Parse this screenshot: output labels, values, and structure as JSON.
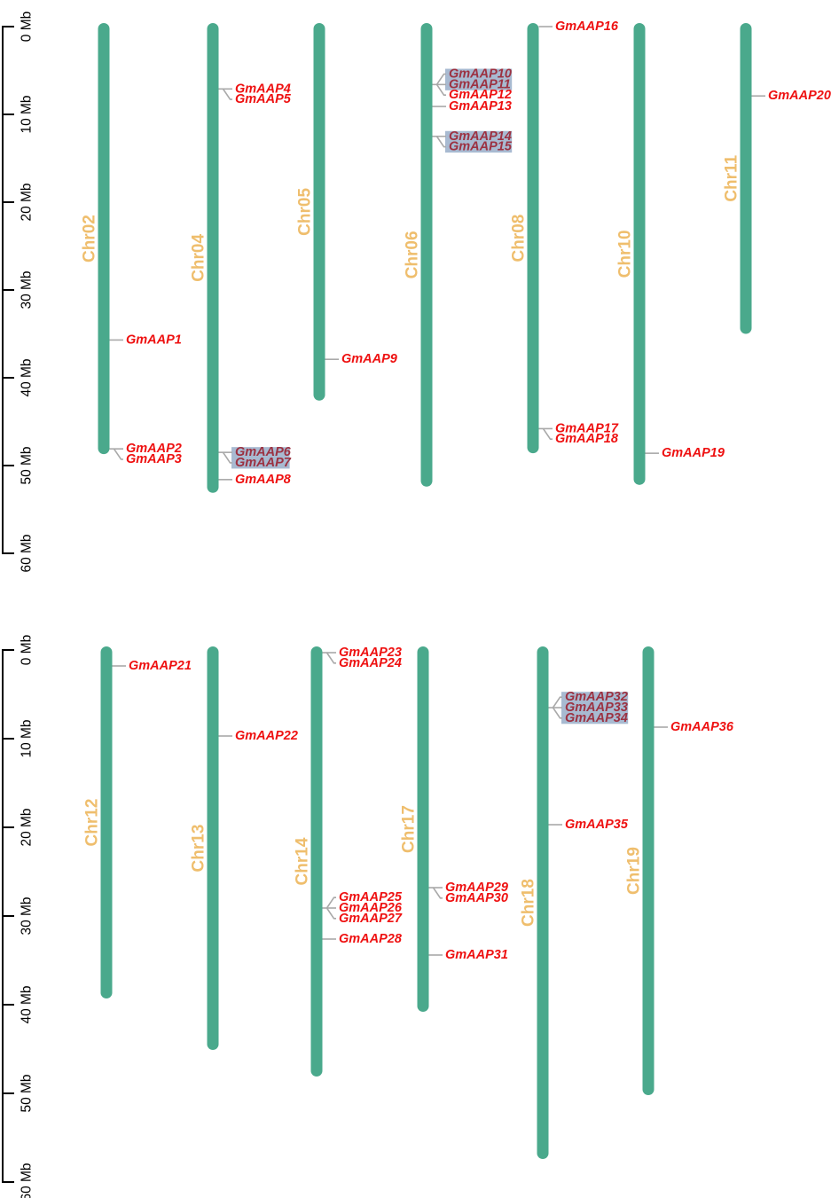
{
  "figure": {
    "type": "chromosome-map",
    "unit": "Mb",
    "colors": {
      "chromosome_bar": "#4AA98C",
      "chromosome_label": "#EFBE6D",
      "gene_label": "#EE1111",
      "gene_label_highlight": "#9C3242",
      "highlight_box": "#A8BAD1",
      "connector": "#A9A9A9",
      "axis": "#000000",
      "background": "#FFFFFF"
    },
    "panels": [
      {
        "ticks": [
          "0 Mb",
          "10 Mb",
          "20 Mb",
          "30 Mb",
          "40 Mb",
          "50 Mb",
          "60 Mb"
        ],
        "chromosomes": [
          {
            "name": "Chr02",
            "length_mb": 48.3,
            "gene_groups": [
              {
                "attach_mb": 35.7,
                "genes": [
                  {
                    "name": "GmAAP1",
                    "highlight": false
                  }
                ]
              },
              {
                "attach_mb": 48.1,
                "genes": [
                  {
                    "name": "GmAAP2",
                    "highlight": false
                  },
                  {
                    "name": "GmAAP3",
                    "highlight": false
                  }
                ]
              }
            ]
          },
          {
            "name": "Chr04",
            "length_mb": 52.7,
            "gene_groups": [
              {
                "attach_mb": 7.1,
                "genes": [
                  {
                    "name": "GmAAP4",
                    "highlight": false
                  },
                  {
                    "name": "GmAAP5",
                    "highlight": false
                  }
                ]
              },
              {
                "attach_mb": 48.5,
                "genes": [
                  {
                    "name": "GmAAP6",
                    "highlight": true
                  },
                  {
                    "name": "GmAAP7",
                    "highlight": true
                  }
                ]
              },
              {
                "attach_mb": 51.6,
                "genes": [
                  {
                    "name": "GmAAP8",
                    "highlight": false
                  }
                ]
              }
            ]
          },
          {
            "name": "Chr05",
            "length_mb": 42.2,
            "gene_groups": [
              {
                "attach_mb": 37.9,
                "genes": [
                  {
                    "name": "GmAAP9",
                    "highlight": false
                  }
                ]
              }
            ]
          },
          {
            "name": "Chr06",
            "length_mb": 52.0,
            "gene_groups": [
              {
                "attach_mb": 6.6,
                "genes": [
                  {
                    "name": "GmAAP10",
                    "highlight": true
                  },
                  {
                    "name": "GmAAP11",
                    "highlight": true
                  },
                  {
                    "name": "GmAAP12",
                    "highlight": false
                  }
                ]
              },
              {
                "attach_mb": 9.1,
                "genes": [
                  {
                    "name": "GmAAP13",
                    "highlight": false
                  }
                ]
              },
              {
                "attach_mb": 12.5,
                "genes": [
                  {
                    "name": "GmAAP14",
                    "highlight": true
                  },
                  {
                    "name": "GmAAP15",
                    "highlight": true
                  }
                ]
              }
            ]
          },
          {
            "name": "Chr08",
            "length_mb": 48.2,
            "gene_groups": [
              {
                "attach_mb": 0.0,
                "genes": [
                  {
                    "name": "GmAAP16",
                    "highlight": false
                  }
                ]
              },
              {
                "attach_mb": 45.8,
                "genes": [
                  {
                    "name": "GmAAP17",
                    "highlight": false
                  },
                  {
                    "name": "GmAAP18",
                    "highlight": false
                  }
                ]
              }
            ]
          },
          {
            "name": "Chr10",
            "length_mb": 51.8,
            "gene_groups": [
              {
                "attach_mb": 48.6,
                "genes": [
                  {
                    "name": "GmAAP19",
                    "highlight": false
                  }
                ]
              }
            ]
          },
          {
            "name": "Chr11",
            "length_mb": 34.6,
            "gene_groups": [
              {
                "attach_mb": 7.9,
                "genes": [
                  {
                    "name": "GmAAP20",
                    "highlight": false
                  }
                ]
              }
            ]
          }
        ]
      },
      {
        "ticks": [
          "0 Mb",
          "10 Mb",
          "20 Mb",
          "30 Mb",
          "40 Mb",
          "50 Mb",
          "60 Mb"
        ],
        "chromosomes": [
          {
            "name": "Chr12",
            "length_mb": 38.9,
            "gene_groups": [
              {
                "attach_mb": 1.8,
                "genes": [
                  {
                    "name": "GmAAP21",
                    "highlight": false
                  }
                ]
              }
            ]
          },
          {
            "name": "Chr13",
            "length_mb": 44.7,
            "gene_groups": [
              {
                "attach_mb": 9.7,
                "genes": [
                  {
                    "name": "GmAAP22",
                    "highlight": false
                  }
                ]
              }
            ]
          },
          {
            "name": "Chr14",
            "length_mb": 47.7,
            "gene_groups": [
              {
                "attach_mb": 0.3,
                "genes": [
                  {
                    "name": "GmAAP23",
                    "highlight": false
                  },
                  {
                    "name": "GmAAP24",
                    "highlight": false
                  }
                ]
              },
              {
                "attach_mb": 29.1,
                "genes": [
                  {
                    "name": "GmAAP25",
                    "highlight": false
                  },
                  {
                    "name": "GmAAP26",
                    "highlight": false
                  },
                  {
                    "name": "GmAAP27",
                    "highlight": false
                  }
                ]
              },
              {
                "attach_mb": 32.6,
                "genes": [
                  {
                    "name": "GmAAP28",
                    "highlight": false
                  }
                ]
              }
            ]
          },
          {
            "name": "Chr17",
            "length_mb": 40.4,
            "gene_groups": [
              {
                "attach_mb": 26.8,
                "genes": [
                  {
                    "name": "GmAAP29",
                    "highlight": false
                  },
                  {
                    "name": "GmAAP30",
                    "highlight": false
                  }
                ]
              },
              {
                "attach_mb": 34.4,
                "genes": [
                  {
                    "name": "GmAAP31",
                    "highlight": false
                  }
                ]
              }
            ]
          },
          {
            "name": "Chr18",
            "length_mb": 57.0,
            "gene_groups": [
              {
                "attach_mb": 6.5,
                "genes": [
                  {
                    "name": "GmAAP32",
                    "highlight": true
                  },
                  {
                    "name": "GmAAP33",
                    "highlight": true
                  },
                  {
                    "name": "GmAAP34",
                    "highlight": true
                  }
                ]
              },
              {
                "attach_mb": 19.7,
                "genes": [
                  {
                    "name": "GmAAP35",
                    "highlight": false
                  }
                ]
              }
            ]
          },
          {
            "name": "Chr19",
            "length_mb": 49.8,
            "gene_groups": [
              {
                "attach_mb": 8.7,
                "genes": [
                  {
                    "name": "GmAAP36",
                    "highlight": false
                  }
                ]
              }
            ]
          }
        ]
      }
    ]
  }
}
